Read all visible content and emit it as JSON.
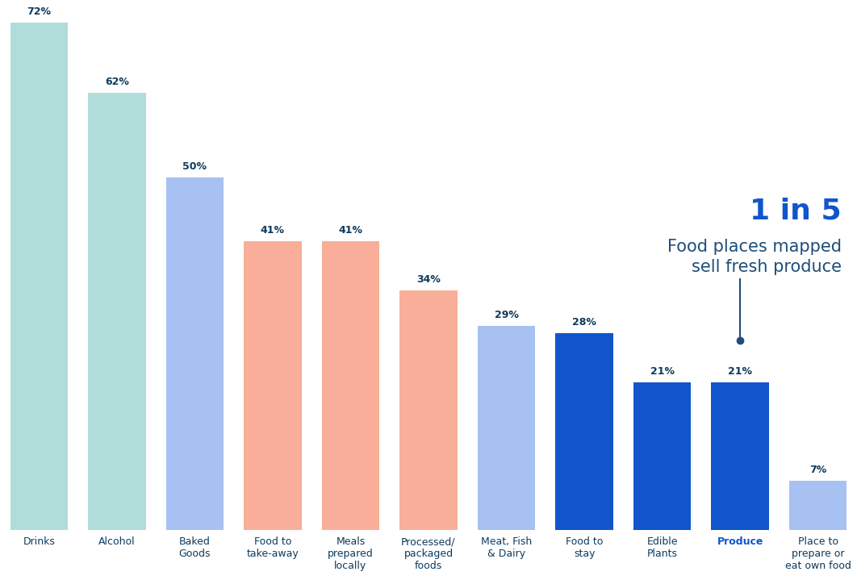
{
  "chart_data": {
    "type": "bar",
    "categories": [
      "Drinks",
      "Alcohol",
      "Baked\nGoods",
      "Food to\ntake-away",
      "Meals\nprepared\nlocally",
      "Processed/\npackaged\nfoods",
      "Meat, Fish\n& Dairy",
      "Food to\nstay",
      "Edible\nPlants",
      "Produce",
      "Place to\nprepare or\neat own food"
    ],
    "values": [
      72,
      62,
      50,
      41,
      41,
      34,
      29,
      28,
      21,
      21,
      7
    ],
    "value_labels": [
      "72%",
      "62%",
      "50%",
      "41%",
      "41%",
      "34%",
      "29%",
      "28%",
      "21%",
      "21%",
      "7%"
    ],
    "colors": [
      "#b0dcd9",
      "#b0dcd9",
      "#a6c1f2",
      "#f8ae98",
      "#f8ae98",
      "#f8ae98",
      "#a6c1f2",
      "#1155cc",
      "#1155cc",
      "#1155cc",
      "#a6c1f2"
    ],
    "ylim": [
      0,
      72
    ],
    "data_labels": true,
    "tick_labels": "x",
    "annotation": {
      "title": "1 in 5",
      "text": "Food places mapped\nsell fresh produce",
      "category": "Produce"
    }
  }
}
